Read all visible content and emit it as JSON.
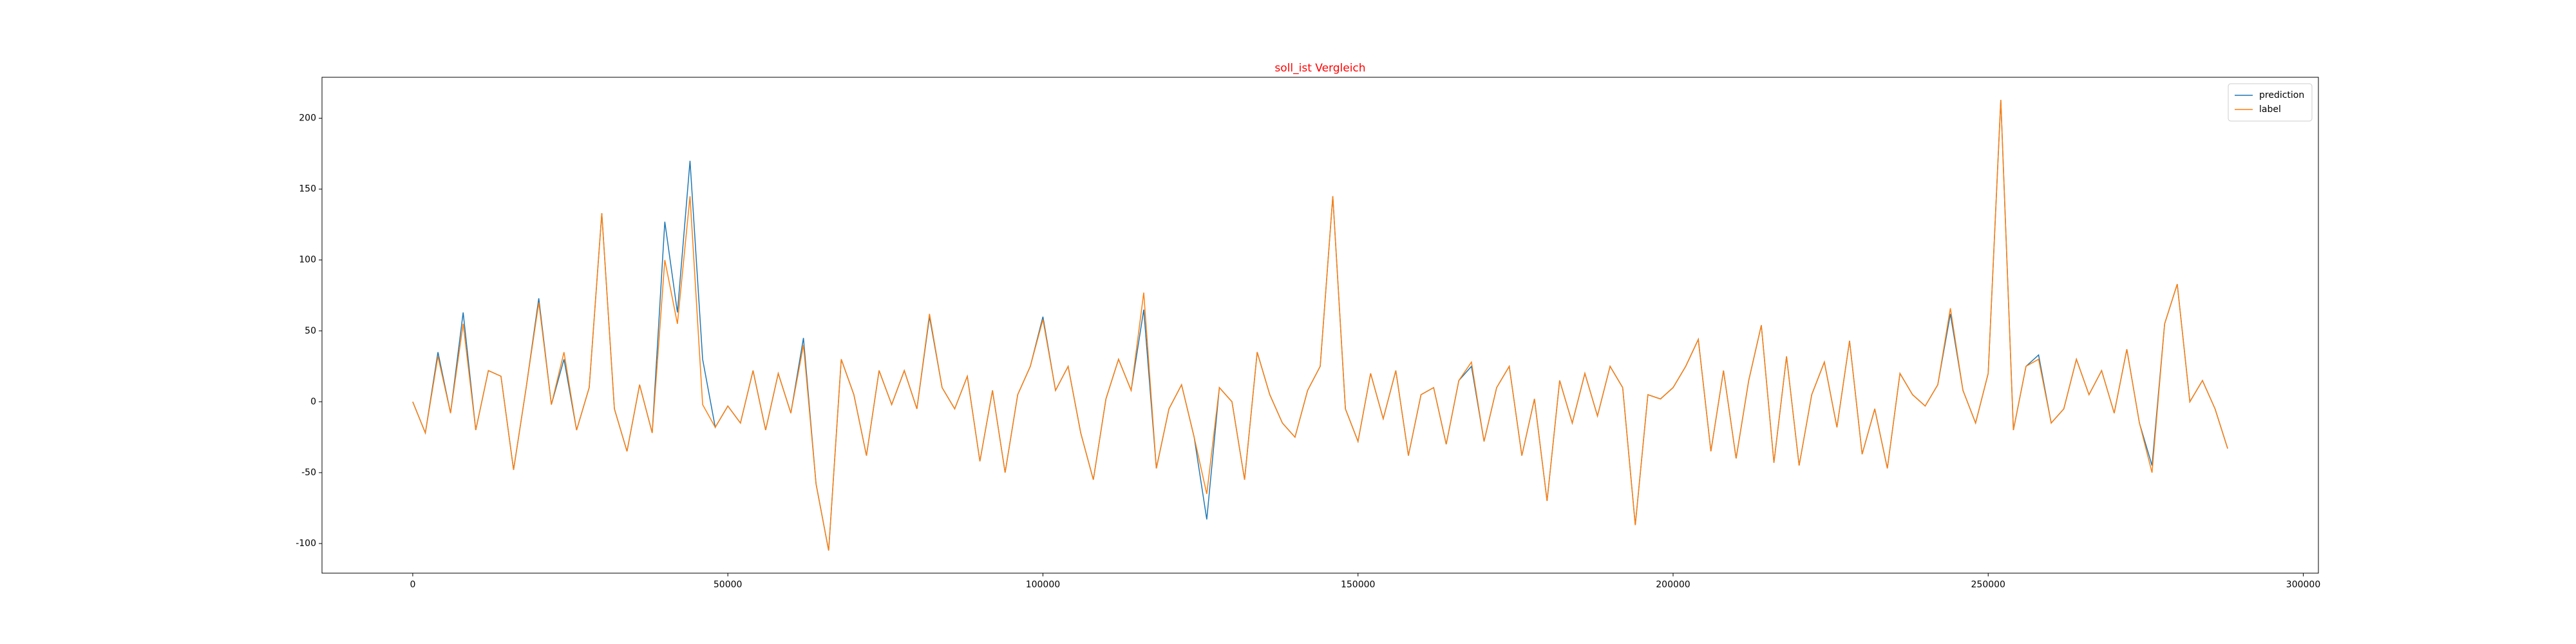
{
  "chart_data": {
    "type": "line",
    "title": "soll_ist Vergleich",
    "x": [
      0,
      2000,
      4000,
      6000,
      8000,
      10000,
      12000,
      14000,
      16000,
      18000,
      20000,
      22000,
      24000,
      26000,
      28000,
      30000,
      32000,
      34000,
      36000,
      38000,
      40000,
      42000,
      44000,
      46000,
      48000,
      50000,
      52000,
      54000,
      56000,
      58000,
      60000,
      62000,
      64000,
      66000,
      68000,
      70000,
      72000,
      74000,
      76000,
      78000,
      80000,
      82000,
      84000,
      86000,
      88000,
      90000,
      92000,
      94000,
      96000,
      98000,
      100000,
      102000,
      104000,
      106000,
      108000,
      110000,
      112000,
      114000,
      116000,
      118000,
      120000,
      122000,
      124000,
      126000,
      128000,
      130000,
      132000,
      134000,
      136000,
      138000,
      140000,
      142000,
      144000,
      146000,
      148000,
      150000,
      152000,
      154000,
      156000,
      158000,
      160000,
      162000,
      164000,
      166000,
      168000,
      170000,
      172000,
      174000,
      176000,
      178000,
      180000,
      182000,
      184000,
      186000,
      188000,
      190000,
      192000,
      194000,
      196000,
      198000,
      200000,
      202000,
      204000,
      206000,
      208000,
      210000,
      212000,
      214000,
      216000,
      218000,
      220000,
      222000,
      224000,
      226000,
      228000,
      230000,
      232000,
      234000,
      236000,
      238000,
      240000,
      242000,
      244000,
      246000,
      248000,
      250000,
      252000,
      254000,
      256000,
      258000,
      260000,
      262000,
      264000,
      266000,
      268000,
      270000,
      272000,
      274000,
      276000,
      278000,
      280000,
      282000,
      284000,
      286000,
      288000
    ],
    "series": [
      {
        "name": "prediction",
        "color": "#1f77b4",
        "values": [
          0,
          -22,
          35,
          -8,
          63,
          -20,
          22,
          18,
          -48,
          10,
          73,
          -2,
          30,
          -20,
          10,
          133,
          -5,
          -35,
          12,
          -22,
          127,
          63,
          170,
          30,
          -18,
          -3,
          -15,
          22,
          -20,
          20,
          -8,
          45,
          -58,
          -105,
          30,
          5,
          -38,
          22,
          -2,
          22,
          -5,
          60,
          10,
          -5,
          18,
          -42,
          8,
          -50,
          5,
          25,
          60,
          8,
          25,
          -22,
          -55,
          2,
          30,
          8,
          65,
          -47,
          -5,
          12,
          -25,
          -83,
          10,
          0,
          -55,
          35,
          5,
          -15,
          -25,
          8,
          25,
          145,
          -5,
          -28,
          20,
          -12,
          22,
          -38,
          5,
          10,
          -30,
          15,
          25,
          -28,
          10,
          25,
          -38,
          2,
          -70,
          15,
          -15,
          20,
          -10,
          25,
          10,
          -87,
          5,
          2,
          10,
          25,
          44,
          -35,
          22,
          -40,
          15,
          54,
          -43,
          32,
          -45,
          5,
          28,
          -18,
          43,
          -37,
          -5,
          -47,
          20,
          5,
          -3,
          12,
          62,
          8,
          -15,
          20,
          213,
          -20,
          25,
          33,
          -15,
          -5,
          30,
          5,
          22,
          -8,
          37,
          -15,
          -45,
          55,
          83,
          0,
          15,
          -5,
          -33
        ]
      },
      {
        "name": "label",
        "color": "#ff7f0e",
        "values": [
          0,
          -22,
          32,
          -8,
          55,
          -20,
          22,
          18,
          -48,
          10,
          70,
          -2,
          35,
          -20,
          10,
          133,
          -5,
          -35,
          12,
          -22,
          100,
          55,
          145,
          -2,
          -18,
          -3,
          -15,
          22,
          -20,
          20,
          -8,
          40,
          -58,
          -105,
          30,
          5,
          -38,
          22,
          -2,
          22,
          -5,
          62,
          10,
          -5,
          18,
          -42,
          8,
          -50,
          5,
          25,
          58,
          8,
          25,
          -22,
          -55,
          2,
          30,
          8,
          77,
          -47,
          -5,
          12,
          -25,
          -65,
          10,
          0,
          -55,
          35,
          5,
          -15,
          -25,
          8,
          25,
          145,
          -5,
          -28,
          20,
          -12,
          22,
          -38,
          5,
          10,
          -30,
          15,
          28,
          -28,
          10,
          25,
          -38,
          2,
          -70,
          15,
          -15,
          20,
          -10,
          25,
          10,
          -87,
          5,
          2,
          10,
          25,
          44,
          -35,
          22,
          -40,
          15,
          54,
          -43,
          32,
          -45,
          5,
          28,
          -18,
          43,
          -37,
          -5,
          -47,
          20,
          5,
          -3,
          12,
          66,
          8,
          -15,
          20,
          213,
          -20,
          25,
          30,
          -15,
          -5,
          30,
          5,
          22,
          -8,
          37,
          -15,
          -50,
          55,
          83,
          0,
          15,
          -5,
          -33
        ]
      }
    ],
    "xlim": [
      -14400,
      302400
    ],
    "ylim": [
      -120.9,
      228.9
    ],
    "xticks": [
      0,
      50000,
      100000,
      150000,
      200000,
      250000,
      300000
    ],
    "yticks": [
      -100,
      -50,
      0,
      50,
      100,
      150,
      200
    ],
    "legend": "upper right"
  }
}
